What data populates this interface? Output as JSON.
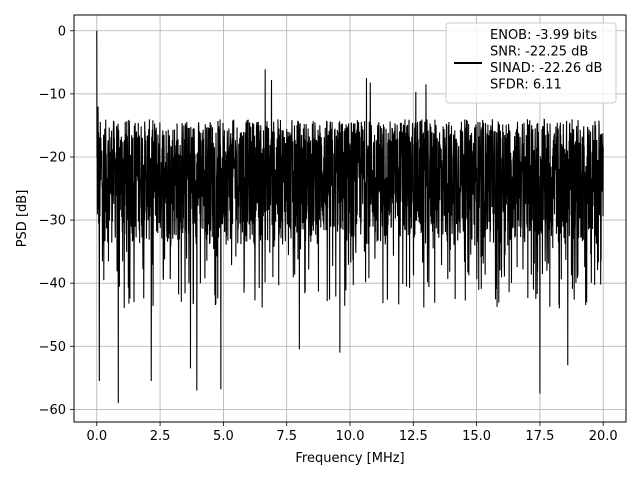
{
  "chart_data": {
    "type": "line",
    "xlabel": "Frequency [MHz]",
    "ylabel": "PSD [dB]",
    "xlim": [
      -0.9,
      20.9
    ],
    "ylim": [
      -62,
      2.5
    ],
    "xticks": [
      0.0,
      2.5,
      5.0,
      7.5,
      10.0,
      12.5,
      15.0,
      17.5,
      20.0
    ],
    "xtick_labels": [
      "0.0",
      "2.5",
      "5.0",
      "7.5",
      "10.0",
      "12.5",
      "15.0",
      "17.5",
      "20.0"
    ],
    "yticks": [
      0,
      -10,
      -20,
      -30,
      -40,
      -50,
      -60
    ],
    "ytick_labels": [
      "0",
      "−10",
      "−20",
      "−30",
      "−40",
      "−50",
      "−60"
    ],
    "grid": true,
    "legend_position": "top-right",
    "series": [
      {
        "name": "ENOB: -3.99 bits\nSNR: -22.25 dB\nSINAD: -22.26 dB\nSFDR: 6.11",
        "color": "#000000",
        "x_range": [
          0.0,
          20.0
        ],
        "noise_band_db": [
          -34,
          -14
        ],
        "peaks": [
          {
            "x": 0.0,
            "y": 0.0
          },
          {
            "x": 0.05,
            "y": -12.0
          },
          {
            "x": 6.65,
            "y": -6.1
          },
          {
            "x": 6.9,
            "y": -7.8
          },
          {
            "x": 10.65,
            "y": -7.5
          },
          {
            "x": 10.8,
            "y": -8.2
          },
          {
            "x": 12.6,
            "y": -9.7
          },
          {
            "x": 13.0,
            "y": -8.5
          }
        ],
        "dips": [
          {
            "x": 0.1,
            "y": -55.5
          },
          {
            "x": 0.85,
            "y": -59.0
          },
          {
            "x": 2.15,
            "y": -55.5
          },
          {
            "x": 3.7,
            "y": -53.5
          },
          {
            "x": 3.95,
            "y": -57.0
          },
          {
            "x": 4.9,
            "y": -56.8
          },
          {
            "x": 8.0,
            "y": -50.5
          },
          {
            "x": 9.6,
            "y": -51.0
          },
          {
            "x": 17.5,
            "y": -57.5
          },
          {
            "x": 18.6,
            "y": -53.0
          }
        ]
      }
    ]
  }
}
